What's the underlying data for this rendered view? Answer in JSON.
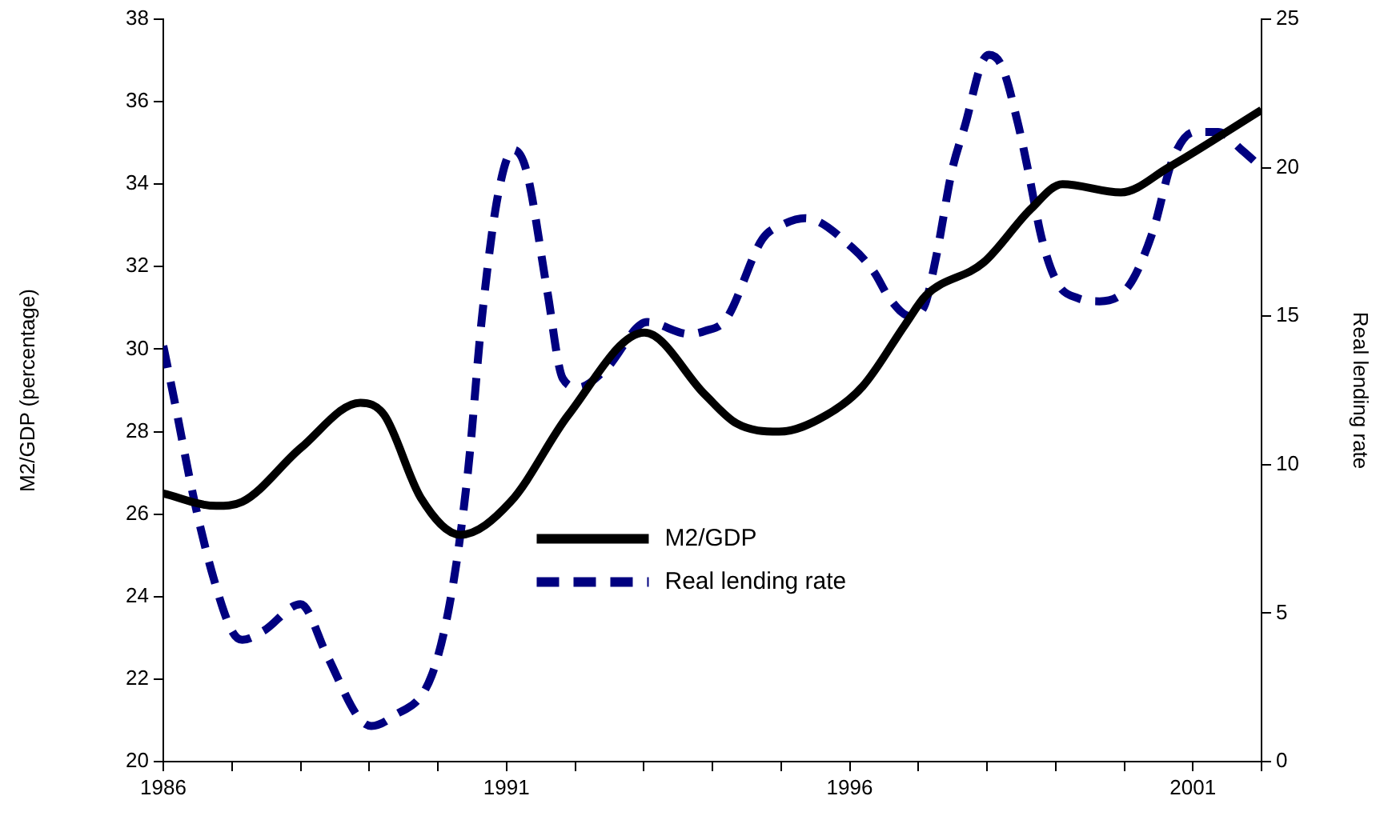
{
  "chart_data": {
    "type": "line",
    "ylabel": "M2/GDP (percentage)",
    "y2label": "Real lending rate",
    "xlim": [
      1986,
      2002
    ],
    "xticks": [
      1986,
      {
        "value": 1987,
        "label": null
      },
      {
        "value": 1988,
        "label": null
      },
      {
        "value": 1989,
        "label": null
      },
      {
        "value": 1990,
        "label": null
      },
      1991,
      {
        "value": 1992,
        "label": null
      },
      {
        "value": 1993,
        "label": null
      },
      {
        "value": 1994,
        "label": null
      },
      {
        "value": 1995,
        "label": null
      },
      1996,
      {
        "value": 1997,
        "label": null
      },
      {
        "value": 1998,
        "label": null
      },
      {
        "value": 1999,
        "label": null
      },
      {
        "value": 2000,
        "label": null
      },
      2001,
      {
        "value": 2002,
        "label": null
      }
    ],
    "ylim": [
      20,
      38
    ],
    "yticks": [
      20,
      22,
      24,
      26,
      28,
      30,
      32,
      34,
      36,
      38
    ],
    "y2lim": [
      0,
      25
    ],
    "y2ticks": [
      0,
      5,
      10,
      15,
      20,
      25
    ],
    "grid": false,
    "legend": "center",
    "marker": "none",
    "series": [
      {
        "name": "M2/GDP",
        "color": "#000000",
        "line_style": "solid",
        "x": [
          1986,
          1986.77,
          1987.15,
          1988.0,
          1988.87,
          1989.22,
          1989.75,
          1990.33,
          1991.06,
          1991.9,
          1993.01,
          1993.89,
          1994.35,
          1994.97,
          1995.66,
          1996.19,
          1996.81,
          1997.11,
          1997.95,
          1998.64,
          1999.1,
          1999.95,
          2000.64,
          2002
        ],
        "values": [
          26.5,
          26.2,
          26.3,
          27.6,
          28.7,
          28.4,
          26.4,
          25.5,
          26.3,
          28.4,
          30.4,
          28.9,
          28.2,
          28.0,
          28.4,
          29.1,
          30.6,
          31.3,
          32.1,
          33.4,
          34.0,
          33.8,
          34.4,
          35.8
        ]
      },
      {
        "name": "Real lending rate",
        "color": "#000080",
        "line_style": "dashed",
        "axis": "y2",
        "x": [
          1986,
          1986.15,
          1986.46,
          1986.73,
          1987.0,
          1987.15,
          1987.46,
          1988.0,
          1988.38,
          1988.84,
          1989.03,
          1989.33,
          1989.91,
          1990.21,
          1990.44,
          1990.64,
          1990.87,
          1991.1,
          1991.29,
          1991.59,
          1991.82,
          1992.05,
          1992.44,
          1993.05,
          1993.66,
          1993.89,
          1994.2,
          1994.73,
          1995.04,
          1995.35,
          1996.04,
          1996.35,
          1996.58,
          1996.88,
          1997.08,
          1997.26,
          1997.49,
          1997.69,
          1997.92,
          1998.03,
          1998.22,
          1998.45,
          1998.6,
          1998.8,
          1999.03,
          1999.33,
          1999.64,
          2000.06,
          2000.41,
          2000.71,
          2001.02,
          2001.37,
          2001.71,
          2002
        ],
        "values": [
          14.0,
          12.3,
          8.7,
          6.2,
          4.4,
          4.1,
          4.4,
          5.3,
          3.6,
          1.5,
          1.2,
          1.5,
          2.9,
          5.8,
          9.8,
          14.9,
          19.0,
          20.6,
          19.9,
          15.9,
          12.9,
          12.6,
          13.2,
          14.8,
          14.4,
          14.5,
          14.9,
          17.6,
          18.1,
          18.3,
          17.3,
          16.5,
          15.6,
          15.0,
          15.3,
          17.0,
          19.9,
          21.5,
          23.5,
          23.8,
          23.4,
          21.5,
          19.9,
          17.6,
          16.1,
          15.6,
          15.5,
          16.0,
          17.8,
          20.3,
          21.2,
          21.2,
          20.6,
          20.0
        ]
      }
    ]
  }
}
